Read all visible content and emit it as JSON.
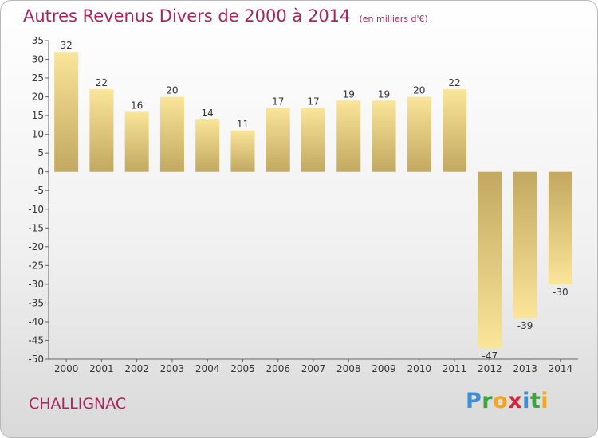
{
  "title": {
    "main": "Autres Revenus Divers de 2000 à 2014",
    "unit": "(en milliers d'€)"
  },
  "place": "CHALLIGNAC",
  "logo": {
    "letters": [
      "P",
      "r",
      "o",
      "x",
      "i",
      "t",
      "i"
    ],
    "colors": [
      "#3a8fd6",
      "#3fa340",
      "#f2a51f",
      "#d6253a",
      "#3a8fd6",
      "#3fa340",
      "#f2a51f"
    ]
  },
  "colors": {
    "bar_light": "#fae59a",
    "bar_dark": "#c2a860",
    "title": "#a8255c"
  },
  "chart_data": {
    "type": "bar",
    "title": "Autres Revenus Divers de 2000 à 2014",
    "xlabel": "",
    "ylabel": "",
    "ylim": [
      -50,
      35
    ],
    "yticks": [
      35,
      30,
      25,
      20,
      15,
      10,
      5,
      0,
      -5,
      -10,
      -15,
      -20,
      -25,
      -30,
      -35,
      -40,
      -45,
      -50
    ],
    "grid": false,
    "categories": [
      "2000",
      "2001",
      "2002",
      "2003",
      "2004",
      "2005",
      "2006",
      "2007",
      "2008",
      "2009",
      "2010",
      "2011",
      "2012",
      "2013",
      "2014"
    ],
    "values": [
      32,
      22,
      16,
      20,
      14,
      11,
      17,
      17,
      19,
      19,
      20,
      22,
      -47,
      -39,
      -30
    ],
    "data_labels": [
      "32",
      "22",
      "16",
      "20",
      "14",
      "11",
      "17",
      "17",
      "19",
      "19",
      "20",
      "22",
      "-47",
      "-39",
      "-30"
    ]
  }
}
